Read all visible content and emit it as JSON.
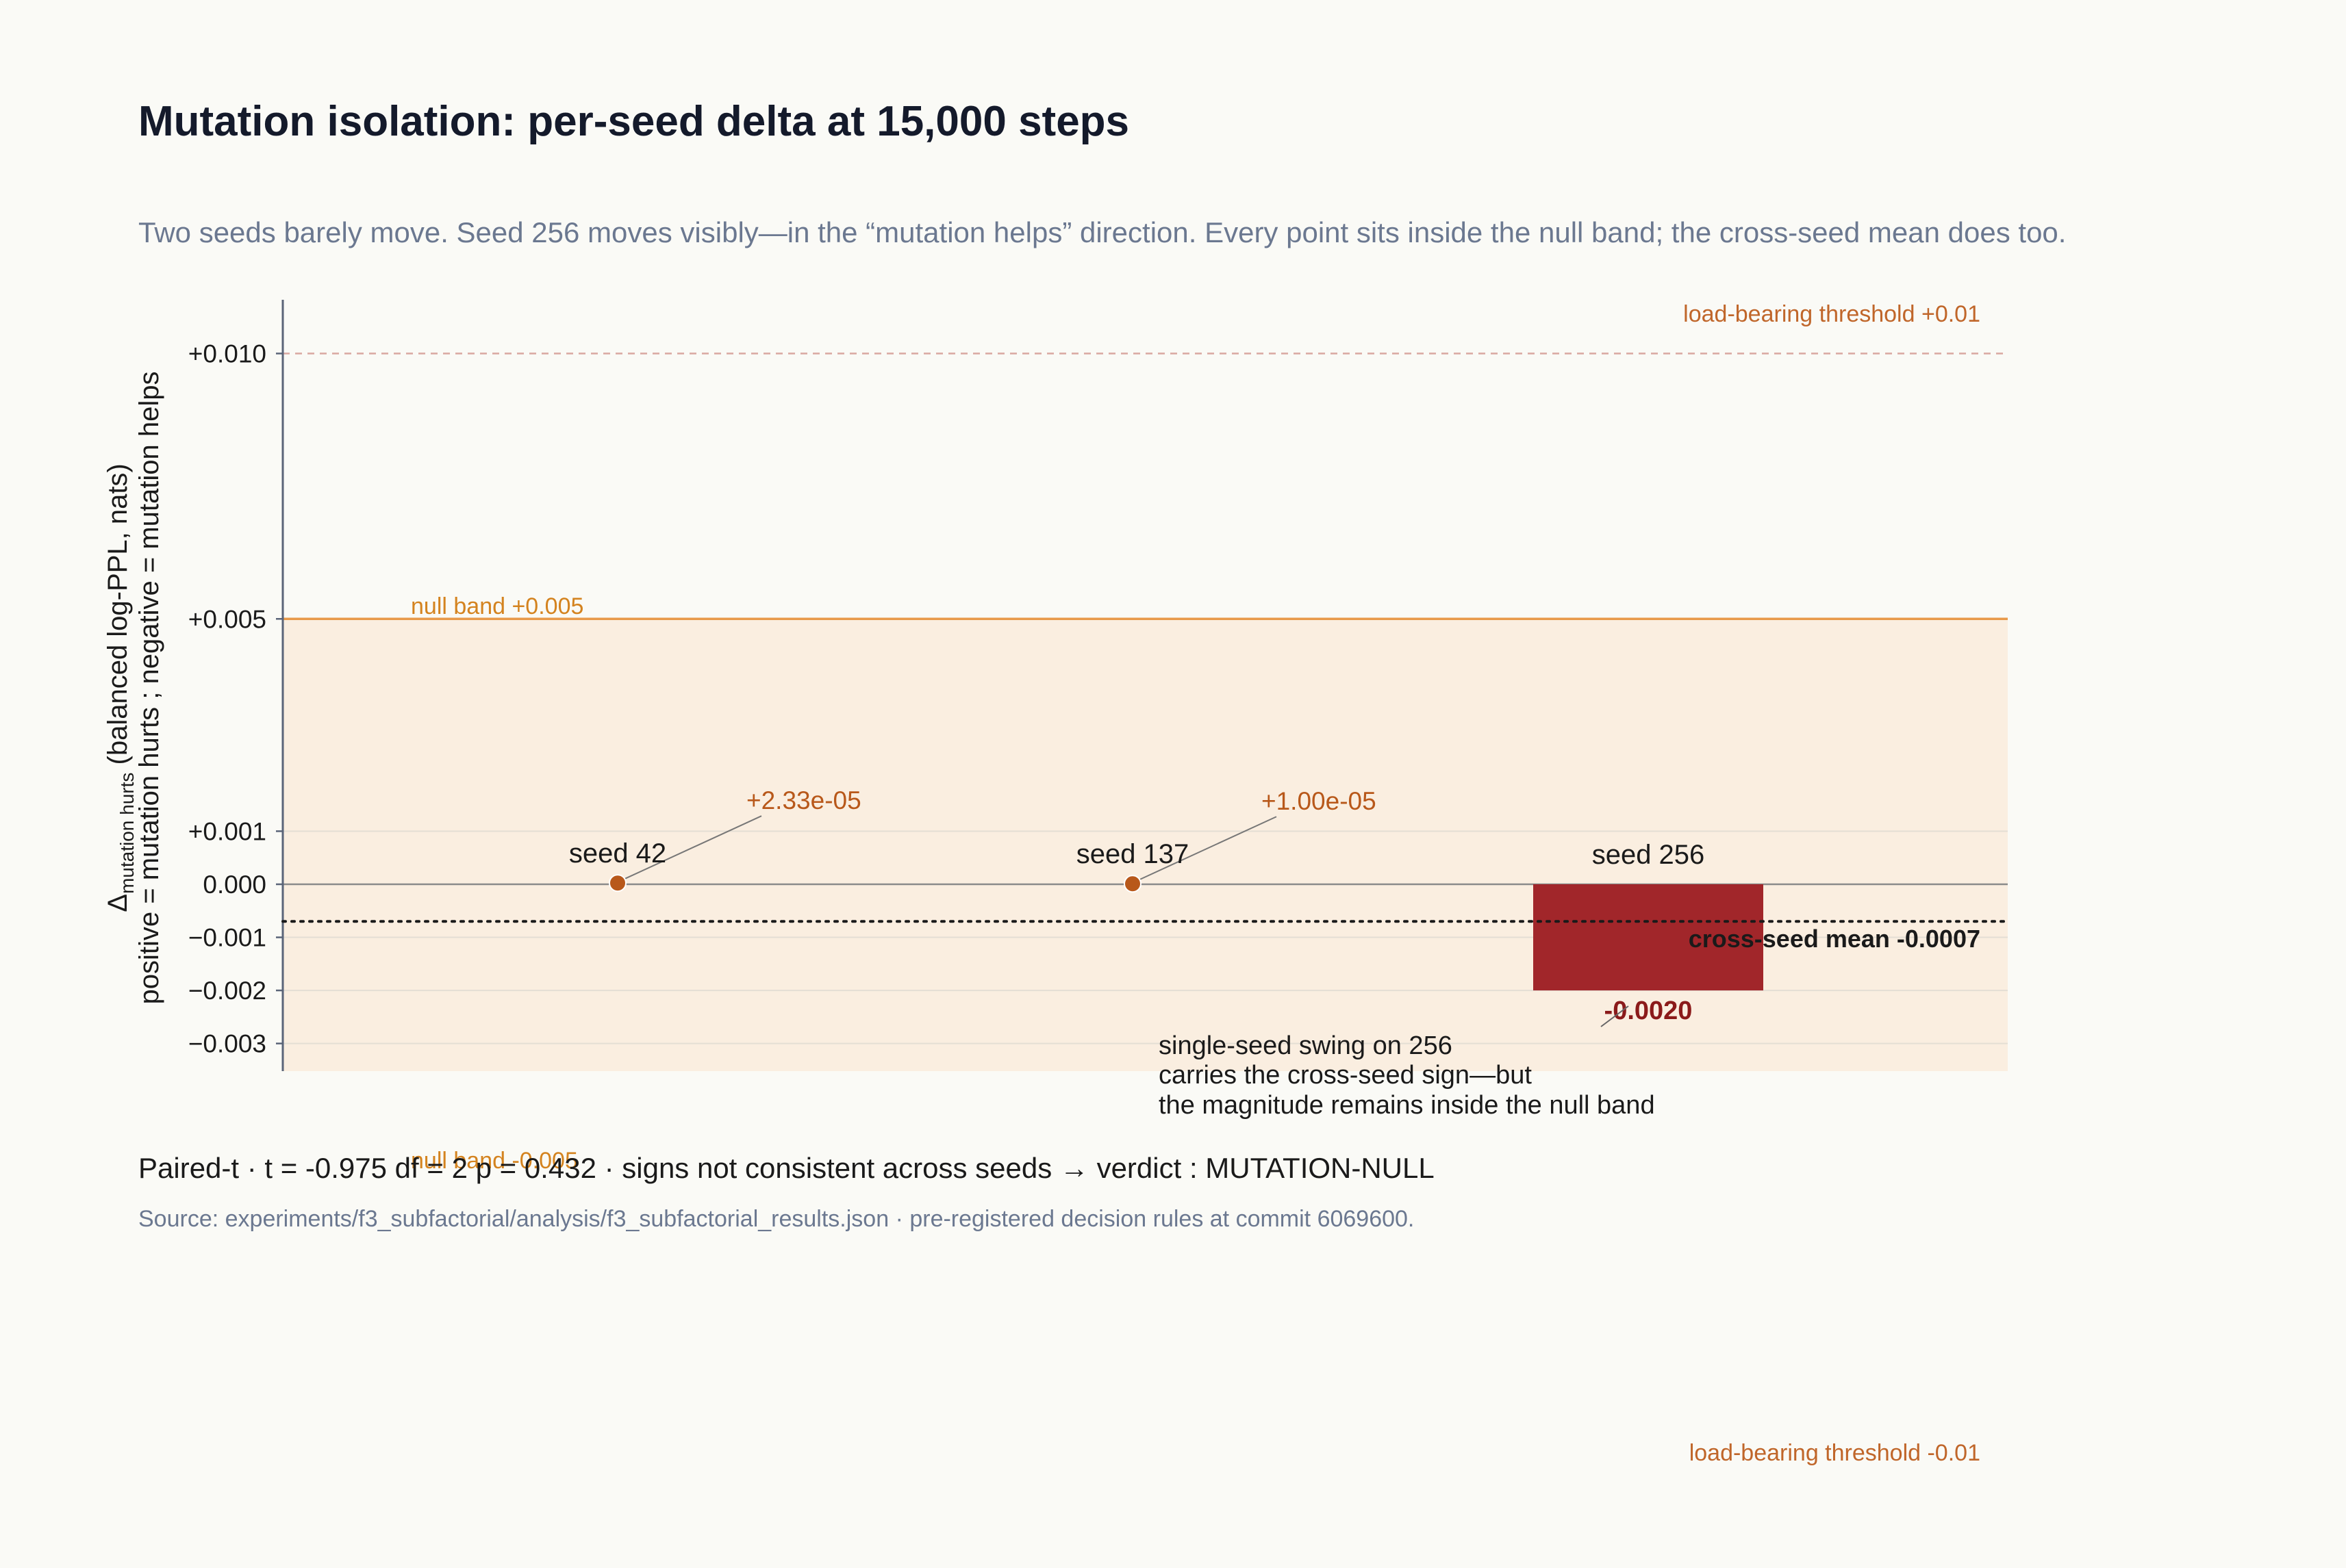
{
  "chart_data": {
    "type": "bar",
    "title": "Mutation isolation:  per-seed delta at 15,000 steps",
    "subtitle": "Two seeds barely move. Seed 256 moves visibly—in the “mutation helps” direction. Every point sits inside the null band; the cross-seed mean does too.",
    "ylabel": {
      "delta": "Δ",
      "subscript": "mutation hurts",
      "unit": "  (balanced log-PPL, nats)",
      "line2": "positive = mutation hurts ;  negative = mutation helps"
    },
    "yticks": [
      {
        "value": 0.01,
        "label": "+0.010"
      },
      {
        "value": 0.005,
        "label": "+0.005"
      },
      {
        "value": 0.001,
        "label": "+0.001"
      },
      {
        "value": 0.0,
        "label": "0.000"
      },
      {
        "value": -0.001,
        "label": "−0.001"
      },
      {
        "value": -0.002,
        "label": "−0.002"
      },
      {
        "value": -0.003,
        "label": "−0.003"
      }
    ],
    "ylim": [
      -0.0035,
      0.011
    ],
    "grid": true,
    "categories": [
      "seed 42",
      "seed 137",
      "seed 256"
    ],
    "values": [
      2.33e-05,
      1e-05,
      -0.002
    ],
    "value_labels": [
      "+2.33e-05",
      "+1.00e-05",
      "-0.0020"
    ],
    "marks": [
      "point",
      "point",
      "bar"
    ],
    "null_band": {
      "upper": 0.005,
      "lower": -0.005,
      "upper_label": "null band +0.005",
      "lower_label": "null band -0.005"
    },
    "thresholds": {
      "upper": 0.01,
      "lower": -0.01,
      "upper_label": "load-bearing threshold +0.01",
      "lower_label": "load-bearing threshold -0.01"
    },
    "cross_seed_mean": {
      "value": -0.0007,
      "label": "cross-seed mean  -0.0007"
    },
    "annotation": [
      "single-seed swing on 256",
      "carries the cross-seed sign—but",
      "the magnitude remains inside the null band"
    ],
    "colors": {
      "point": "#b8581a",
      "bar": "#a1262a",
      "null_band_fill": "#faeee0",
      "null_line": "#e8994a",
      "threshold_line": "#d9a8a0"
    }
  },
  "stats_line": "Paired-t  ·  t = -0.975   df = 2   p = 0.432   ·  signs not consistent across seeds  →   verdict :   MUTATION-NULL",
  "source": "Source: experiments/f3_subfactorial/analysis/f3_subfactorial_results.json  ·  pre-registered decision rules at commit 6069600."
}
